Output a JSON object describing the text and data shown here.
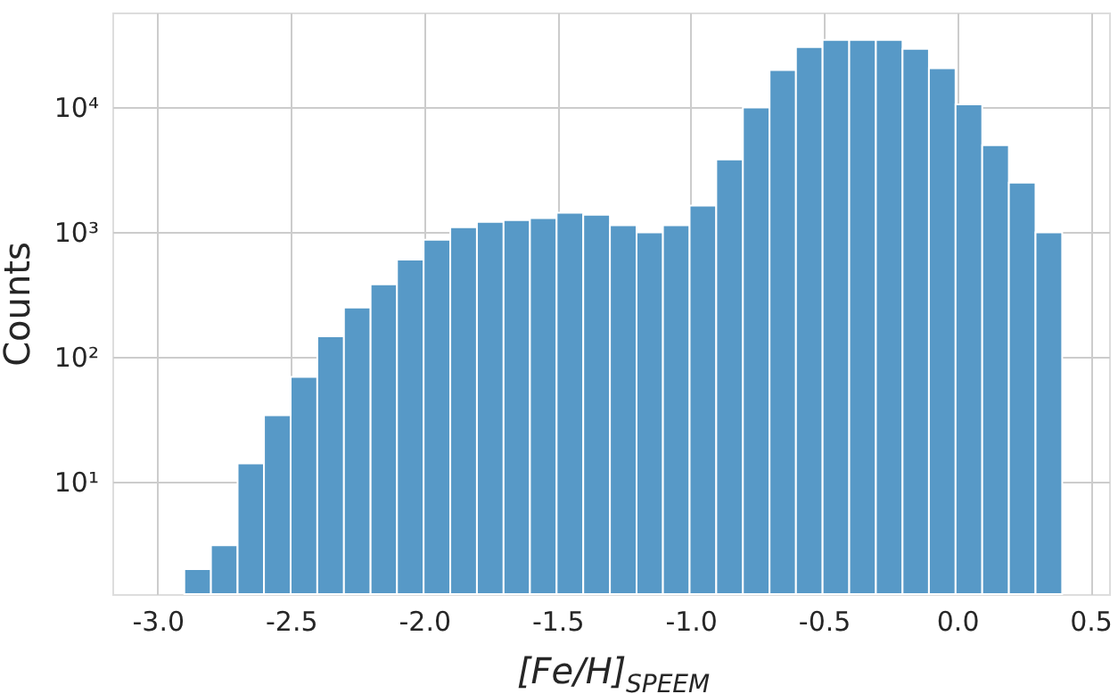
{
  "chart_data": {
    "type": "histogram",
    "xlabel": "[Fe/H]$_{SPEEM}$",
    "ylabel": "Counts",
    "color": "#5799c7",
    "log": true,
    "grid": true,
    "bins": [
      -2.9,
      -2.8,
      -2.7,
      -2.601,
      -2.501,
      -2.401,
      -2.301,
      -2.201,
      -2.102,
      -2.002,
      -1.902,
      -1.802,
      -1.702,
      -1.603,
      -1.503,
      -1.403,
      -1.303,
      -1.203,
      -1.104,
      -1.004,
      -0.904,
      -0.804,
      -0.704,
      -0.605,
      -0.505,
      -0.405,
      -0.305,
      -0.205,
      -0.106,
      -0.006,
      0.094,
      0.194,
      0.294,
      0.394
    ],
    "values": [
      2.0,
      3.1,
      14,
      34,
      69,
      146,
      248,
      380,
      600,
      865,
      1090,
      1200,
      1240,
      1290,
      1420,
      1370,
      1130,
      990,
      1130,
      1620,
      3800,
      9900,
      19700,
      30200,
      34400,
      34400,
      34400,
      29200,
      20400,
      10500,
      4940,
      2480,
      990
    ],
    "xlim": [
      -3.17,
      0.57
    ],
    "xticks": [
      {
        "value": -3,
        "label": "-3.0"
      },
      {
        "value": -2.5,
        "label": "-2.5"
      },
      {
        "value": -2,
        "label": "-2.0"
      },
      {
        "value": -1.5,
        "label": "-1.5"
      },
      {
        "value": -1,
        "label": "-1.0"
      },
      {
        "value": -0.5,
        "label": "-0.5"
      },
      {
        "value": 0,
        "label": "0.0"
      },
      {
        "value": 0.5,
        "label": "0.5"
      }
    ],
    "ylim": [
      1.26,
      57000
    ],
    "yticks": [
      {
        "value": 10,
        "label": "10¹"
      },
      {
        "value": 100,
        "label": "10²"
      },
      {
        "value": 1000,
        "label": "10³"
      },
      {
        "value": 10000,
        "label": "10⁴"
      }
    ]
  }
}
